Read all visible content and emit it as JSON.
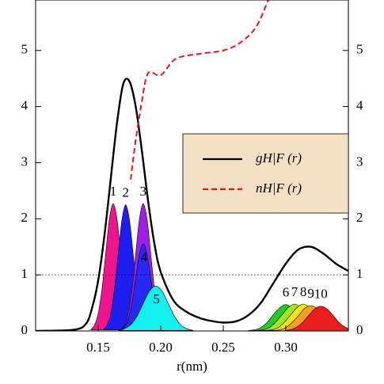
{
  "chart_data": {
    "type": "line",
    "x_label": "r(nm)",
    "xlim": [
      0.1,
      0.35
    ],
    "ylim": [
      0,
      5.9
    ],
    "xticks": [
      0.15,
      {
        "value": 0.2,
        "label": "0.20"
      },
      0.25,
      {
        "value": 0.3,
        "label": "0.30"
      }
    ],
    "yticks": [
      0,
      1,
      2,
      3,
      4,
      5
    ],
    "reference_y": 1,
    "legend": "right",
    "series": [
      {
        "name": "gH|F (r)",
        "color": "#000000",
        "style": "solid",
        "x": [
          0.1,
          0.13,
          0.14,
          0.145,
          0.15,
          0.155,
          0.16,
          0.165,
          0.17,
          0.175,
          0.18,
          0.185,
          0.19,
          0.195,
          0.2,
          0.21,
          0.22,
          0.23,
          0.24,
          0.25,
          0.26,
          0.27,
          0.28,
          0.29,
          0.3,
          0.31,
          0.32,
          0.33,
          0.34,
          0.35
        ],
        "values": [
          0,
          0.02,
          0.12,
          0.4,
          0.9,
          1.7,
          2.7,
          3.7,
          4.4,
          4.45,
          4.0,
          3.2,
          2.3,
          1.55,
          1.05,
          0.55,
          0.35,
          0.24,
          0.18,
          0.15,
          0.17,
          0.28,
          0.5,
          0.85,
          1.2,
          1.45,
          1.5,
          1.38,
          1.2,
          1.07
        ]
      },
      {
        "name": "nH|F (r)",
        "color": "#e8141e",
        "style": "dashed",
        "x": [
          0.176,
          0.18,
          0.185,
          0.19,
          0.2,
          0.212,
          0.231,
          0.25,
          0.263,
          0.276,
          0.286
        ],
        "values": [
          2.7,
          3.4,
          4.1,
          4.6,
          4.56,
          4.85,
          4.94,
          5.0,
          5.13,
          5.41,
          5.9
        ]
      }
    ],
    "peaks": [
      {
        "name": "1",
        "color": "#f0148c",
        "label_color": "#000000",
        "x": [
          0.144,
          0.147,
          0.15,
          0.153,
          0.156,
          0.159,
          0.162,
          0.165,
          0.168,
          0.171,
          0.174,
          0.177,
          0.18
        ],
        "values": [
          0.02,
          0.1,
          0.31,
          0.74,
          1.38,
          2.0,
          2.27,
          2.0,
          1.38,
          0.74,
          0.31,
          0.1,
          0.02
        ]
      },
      {
        "name": "2",
        "color": "#1e1ef0",
        "label_color": "#000000",
        "x": [
          0.154,
          0.157,
          0.16,
          0.163,
          0.166,
          0.169,
          0.172,
          0.175,
          0.178,
          0.181,
          0.184,
          0.187,
          0.19
        ],
        "values": [
          0.02,
          0.1,
          0.3,
          0.73,
          1.37,
          1.98,
          2.25,
          1.98,
          1.37,
          0.73,
          0.3,
          0.1,
          0.02
        ]
      },
      {
        "name": "3",
        "color": "#a01ee6",
        "label_color": "#000000",
        "x": [
          0.168,
          0.171,
          0.174,
          0.177,
          0.18,
          0.183,
          0.186,
          0.189,
          0.192,
          0.195,
          0.198,
          0.201,
          0.204
        ],
        "values": [
          0.02,
          0.1,
          0.31,
          0.74,
          1.38,
          2.0,
          2.27,
          2.0,
          1.38,
          0.74,
          0.31,
          0.1,
          0.02
        ]
      },
      {
        "name": "4",
        "color": "#2828f5",
        "label_color": "#ffffff",
        "x": [
          0.168,
          0.171,
          0.174,
          0.177,
          0.18,
          0.183,
          0.186,
          0.189,
          0.192,
          0.195,
          0.198,
          0.201,
          0.204
        ],
        "values": [
          0.02,
          0.07,
          0.21,
          0.5,
          0.94,
          1.37,
          1.55,
          1.37,
          0.94,
          0.5,
          0.21,
          0.07,
          0.02
        ]
      },
      {
        "name": "5",
        "color": "#14f0f0",
        "label_color": "#ffffff",
        "x": [
          0.166,
          0.171,
          0.176,
          0.181,
          0.186,
          0.191,
          0.196,
          0.201,
          0.206,
          0.211,
          0.216,
          0.221,
          0.226
        ],
        "values": [
          0.01,
          0.04,
          0.11,
          0.26,
          0.49,
          0.71,
          0.8,
          0.71,
          0.49,
          0.26,
          0.11,
          0.04,
          0.01
        ]
      },
      {
        "name": "6",
        "color": "#28c828",
        "label_color": "#000000",
        "x": [
          0.27,
          0.275,
          0.28,
          0.285,
          0.29,
          0.295,
          0.3,
          0.305,
          0.31,
          0.315,
          0.32,
          0.325,
          0.33
        ],
        "values": [
          0.01,
          0.02,
          0.06,
          0.15,
          0.29,
          0.41,
          0.47,
          0.41,
          0.29,
          0.15,
          0.06,
          0.02,
          0.01
        ]
      },
      {
        "name": "7",
        "color": "#a0e628",
        "label_color": "#000000",
        "x": [
          0.277,
          0.282,
          0.287,
          0.292,
          0.297,
          0.302,
          0.307,
          0.312,
          0.317,
          0.322,
          0.327,
          0.332,
          0.337
        ],
        "values": [
          0.01,
          0.02,
          0.06,
          0.16,
          0.29,
          0.42,
          0.48,
          0.42,
          0.29,
          0.16,
          0.06,
          0.02,
          0.01
        ]
      },
      {
        "name": "8",
        "color": "#f0e614",
        "label_color": "#000000",
        "x": [
          0.284,
          0.289,
          0.294,
          0.299,
          0.304,
          0.309,
          0.314,
          0.319,
          0.324,
          0.329,
          0.334,
          0.339,
          0.344
        ],
        "values": [
          0.01,
          0.02,
          0.06,
          0.16,
          0.29,
          0.42,
          0.48,
          0.42,
          0.29,
          0.16,
          0.06,
          0.02,
          0.01
        ]
      },
      {
        "name": "9",
        "color": "#f5a01e",
        "label_color": "#000000",
        "x": [
          0.29,
          0.295,
          0.3,
          0.305,
          0.31,
          0.315,
          0.32,
          0.325,
          0.33,
          0.335,
          0.34,
          0.345,
          0.35
        ],
        "values": [
          0,
          0.02,
          0.06,
          0.15,
          0.27,
          0.4,
          0.45,
          0.4,
          0.27,
          0.15,
          0.06,
          0.02,
          0
        ]
      },
      {
        "name": "10",
        "color": "#eb1e1e",
        "label_color": "#000000",
        "x": [
          0.298,
          0.303,
          0.308,
          0.313,
          0.318,
          0.323,
          0.328,
          0.333,
          0.338,
          0.343,
          0.348,
          0.353,
          0.358
        ],
        "values": [
          0,
          0.02,
          0.06,
          0.14,
          0.27,
          0.39,
          0.44,
          0.39,
          0.27,
          0.14,
          0.06,
          0.02,
          0
        ]
      }
    ]
  }
}
